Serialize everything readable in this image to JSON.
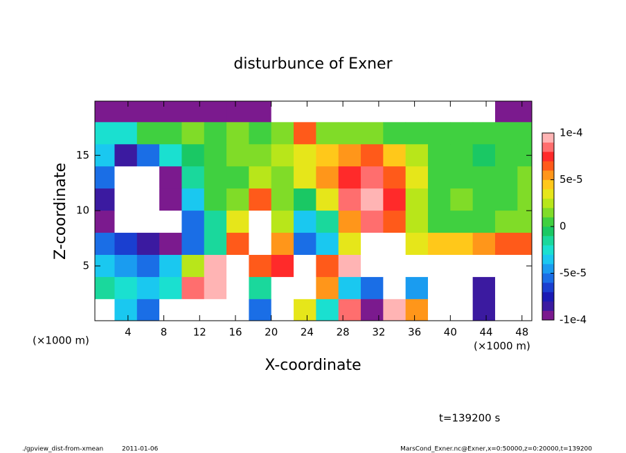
{
  "chart_data": {
    "type": "heatmap",
    "title": "disturbunce of Exner",
    "x_label": "X-coordinate",
    "y_label": "Z-coordinate",
    "x_unit_label": "(×1000 m)",
    "time_label": "t=139200 s",
    "footer_script": "./gpview_dist-from-xmean",
    "footer_date": "2011-01-06",
    "footer_right": "MarsCond_Exner.nc@Exner,x=0:50000,z=0:20000,t=139200",
    "x": [
      1.25,
      3.75,
      6.25,
      8.75,
      11.25,
      13.75,
      16.25,
      18.75,
      21.25,
      23.75,
      26.25,
      28.75,
      31.25,
      33.75,
      36.25,
      38.75,
      41.25,
      43.75,
      46.25,
      48.75
    ],
    "z": [
      19,
      17,
      15,
      13,
      11,
      9,
      7,
      5,
      3,
      1
    ],
    "values": [
      [
        -9e-05,
        -0.0001,
        -0.0001,
        -9e-05,
        -9e-05,
        -9e-05,
        -9e-05,
        -9e-05,
        0.00015,
        0.00015,
        0.00015,
        0.00015,
        0.00015,
        0.00015,
        0.00015,
        0.00015,
        0.00015,
        0.00015,
        -0.0001,
        -9e-05
      ],
      [
        -3e-05,
        -3e-05,
        0,
        0,
        1e-05,
        0,
        1e-05,
        0,
        1e-05,
        6e-05,
        1e-05,
        1e-05,
        1e-05,
        0,
        0,
        0,
        0,
        0,
        0,
        0
      ],
      [
        -4e-05,
        -8e-05,
        -6e-05,
        -3e-05,
        -1e-05,
        0,
        1e-05,
        1e-05,
        2e-05,
        3e-05,
        4e-05,
        5e-05,
        6e-05,
        4e-05,
        2e-05,
        0,
        0,
        -1e-05,
        0,
        0
      ],
      [
        -6e-05,
        -0.00015,
        -0.00015,
        -9e-05,
        -2e-05,
        0,
        0,
        2e-05,
        1e-05,
        3e-05,
        5e-05,
        7e-05,
        8e-05,
        6e-05,
        3e-05,
        0,
        0,
        0,
        0,
        1e-05
      ],
      [
        -8e-05,
        -0.00015,
        -0.00015,
        -0.0001,
        -4e-05,
        0,
        1e-05,
        6e-05,
        1e-05,
        -1e-05,
        3e-05,
        8e-05,
        9e-05,
        7e-05,
        2e-05,
        0,
        1e-05,
        0,
        0,
        1e-05
      ],
      [
        -9e-05,
        -0.00012,
        -0.00015,
        -0.00012,
        -6e-05,
        -2e-05,
        3e-05,
        0.00015,
        2e-05,
        -4e-05,
        -2e-05,
        5e-05,
        8e-05,
        6e-05,
        2e-05,
        0,
        0,
        0,
        1e-05,
        1e-05
      ],
      [
        -6e-05,
        -7e-05,
        -8e-05,
        -9e-05,
        -6e-05,
        -2e-05,
        6e-05,
        0.00015,
        5e-05,
        -6e-05,
        -4e-05,
        3e-05,
        0.00015,
        0.00015,
        3e-05,
        4e-05,
        4e-05,
        5e-05,
        6e-05,
        6e-05
      ],
      [
        -4e-05,
        -5e-05,
        -6e-05,
        -4e-05,
        2e-05,
        9e-05,
        -0.00015,
        6e-05,
        7e-05,
        -0.00015,
        6e-05,
        9e-05,
        0.00015,
        0.00015,
        0.00015,
        0.00015,
        0.00015,
        0.00015,
        0.00015,
        0.00015
      ],
      [
        -2e-05,
        -3e-05,
        -4e-05,
        -3e-05,
        8e-05,
        0.0001,
        -0.00015,
        -2e-05,
        -0.00015,
        -0.00015,
        5e-05,
        -4e-05,
        -6e-05,
        0.00015,
        -5e-05,
        0.00015,
        0.00015,
        -8e-05,
        0.00015,
        0.00015
      ],
      [
        -0.00015,
        -4e-05,
        -6e-05,
        0.00015,
        0.00015,
        0.00015,
        -0.00015,
        -6e-05,
        -0.00015,
        3e-05,
        -3e-05,
        8e-05,
        -0.0001,
        9e-05,
        5e-05,
        0.00015,
        0.00015,
        -8e-05,
        0.00015,
        0.00015
      ]
    ],
    "xlim": [
      0.3,
      49.1
    ],
    "ylim": [
      0.05,
      19.9
    ],
    "xticks": [
      4,
      8,
      12,
      16,
      20,
      24,
      28,
      32,
      36,
      40,
      44,
      48
    ],
    "yticks": [
      5,
      10,
      15
    ],
    "clim": [
      -0.0001,
      0.0001
    ],
    "cticks": [
      {
        "value": 0.0001,
        "label": "1e-4"
      },
      {
        "value": 5e-05,
        "label": "5e-5"
      },
      0,
      {
        "value": -5e-05,
        "label": "-5e-5"
      },
      {
        "value": -0.0001,
        "label": "-1e-4"
      }
    ],
    "colors": [
      "#7b1a8e",
      "#3b1aa0",
      "#1a1ab4",
      "#1a3fd0",
      "#1a6ee6",
      "#1a9cf0",
      "#1ac8f0",
      "#1ae0d0",
      "#1ad89c",
      "#1ac864",
      "#40d040",
      "#80dc28",
      "#b8e61a",
      "#e6e61a",
      "#ffc81a",
      "#ff961a",
      "#ff5a1a",
      "#ff2a2a",
      "#ff6e6e",
      "#ffb4b4"
    ],
    "out_of_range_color": "#ffffff"
  }
}
